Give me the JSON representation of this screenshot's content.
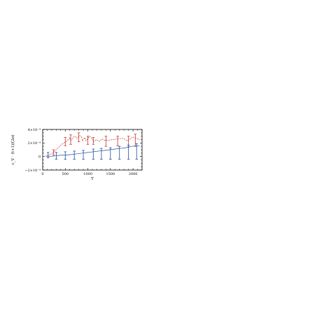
{
  "chart_data": {
    "type": "line",
    "title": "",
    "xlabel": "T",
    "ylabel": "c_V · (t+1)/(2π)",
    "xlim": [
      0,
      2200
    ],
    "ylim": [
      -0.0002,
      0.0004
    ],
    "x_ticks": [
      0,
      500,
      1000,
      1500,
      2000
    ],
    "x_tick_labels": [
      "0",
      "500",
      "1000",
      "1500",
      "2000"
    ],
    "y_ticks": [
      -0.0002,
      0,
      0.0002,
      0.0004
    ],
    "y_tick_labels": [
      "−2×10⁻⁴",
      "0",
      "2×10⁻⁴",
      "4×10⁻⁴"
    ],
    "grid": false,
    "series": [
      {
        "color": "#c0392b",
        "style": "dashed",
        "points": [
          [
            80,
            0.0
          ],
          [
            220,
            5e-05
          ],
          [
            330,
            0.00012
          ],
          [
            420,
            0.00018
          ],
          [
            520,
            0.00022
          ],
          [
            580,
            0.00026
          ],
          [
            600,
            0.00028
          ],
          [
            620,
            0.00023
          ],
          [
            700,
            0.0003
          ],
          [
            740,
            0.00029
          ],
          [
            760,
            0.00027
          ],
          [
            820,
            0.00031
          ],
          [
            860,
            0.00029
          ],
          [
            880,
            0.00023
          ],
          [
            930,
            0.00028
          ],
          [
            960,
            0.00023
          ],
          [
            1040,
            0.0003
          ],
          [
            1090,
            0.00027
          ],
          [
            1130,
            0.00022
          ],
          [
            1190,
            0.00025
          ],
          [
            1250,
            0.00022
          ],
          [
            1310,
            0.00026
          ],
          [
            1370,
            0.00024
          ],
          [
            1450,
            0.00024
          ],
          [
            1560,
            0.00025
          ],
          [
            1660,
            0.00026
          ],
          [
            1780,
            0.00027
          ],
          [
            1880,
            0.00023
          ],
          [
            1990,
            0.00029
          ],
          [
            2150,
            0.00025
          ]
        ]
      },
      {
        "color": "#1f4e9e",
        "style": "solid",
        "points": [
          [
            60,
            1e-05
          ],
          [
            160,
            0.0
          ],
          [
            280,
            1e-05
          ],
          [
            400,
            2e-05
          ],
          [
            520,
            2e-05
          ],
          [
            640,
            3e-05
          ],
          [
            760,
            4e-05
          ],
          [
            880,
            5e-05
          ],
          [
            1000,
            6e-05
          ],
          [
            1120,
            7e-05
          ],
          [
            1240,
            8e-05
          ],
          [
            1360,
            9e-05
          ],
          [
            1480,
            0.0001
          ],
          [
            1600,
            0.00011
          ],
          [
            1720,
            0.00012
          ],
          [
            1840,
            0.00013
          ],
          [
            1960,
            0.00015
          ],
          [
            2150,
            0.00016
          ]
        ]
      }
    ],
    "error_bars": [
      {
        "color": "#c0392b",
        "x": 240,
        "lo": 2e-05,
        "hi": 0.0001
      },
      {
        "color": "#c0392b",
        "x": 500,
        "lo": 0.00016,
        "hi": 0.00028
      },
      {
        "color": "#c0392b",
        "x": 620,
        "lo": 0.00018,
        "hi": 0.00032
      },
      {
        "color": "#c0392b",
        "x": 800,
        "lo": 0.00022,
        "hi": 0.00035
      },
      {
        "color": "#c0392b",
        "x": 1000,
        "lo": 0.00018,
        "hi": 0.0003
      },
      {
        "color": "#c0392b",
        "x": 1120,
        "lo": 0.00018,
        "hi": 0.00028
      },
      {
        "color": "#c0392b",
        "x": 1400,
        "lo": 0.00015,
        "hi": 0.0003
      },
      {
        "color": "#c0392b",
        "x": 1660,
        "lo": 0.00016,
        "hi": 0.0003
      },
      {
        "color": "#c0392b",
        "x": 1900,
        "lo": 0.00014,
        "hi": 0.0003
      },
      {
        "color": "#c0392b",
        "x": 2050,
        "lo": 0.00015,
        "hi": 0.00033
      },
      {
        "color": "#1f4e9e",
        "x": 120,
        "lo": -2e-05,
        "hi": 6e-05
      },
      {
        "color": "#1f4e9e",
        "x": 300,
        "lo": -4e-05,
        "hi": 6e-05
      },
      {
        "color": "#1f4e9e",
        "x": 500,
        "lo": -4e-05,
        "hi": 7e-05
      },
      {
        "color": "#1f4e9e",
        "x": 700,
        "lo": -4e-05,
        "hi": 8e-05
      },
      {
        "color": "#1f4e9e",
        "x": 900,
        "lo": -4e-05,
        "hi": 9e-05
      },
      {
        "color": "#1f4e9e",
        "x": 1120,
        "lo": -4e-05,
        "hi": 0.00011
      },
      {
        "color": "#1f4e9e",
        "x": 1300,
        "lo": -4e-05,
        "hi": 0.00012
      },
      {
        "color": "#1f4e9e",
        "x": 1500,
        "lo": -4e-05,
        "hi": 0.00013
      },
      {
        "color": "#1f4e9e",
        "x": 1700,
        "lo": -4e-05,
        "hi": 0.00015
      },
      {
        "color": "#1f4e9e",
        "x": 1900,
        "lo": -4e-05,
        "hi": 0.00017
      },
      {
        "color": "#1f4e9e",
        "x": 2080,
        "lo": -4e-05,
        "hi": 0.00019
      }
    ]
  }
}
